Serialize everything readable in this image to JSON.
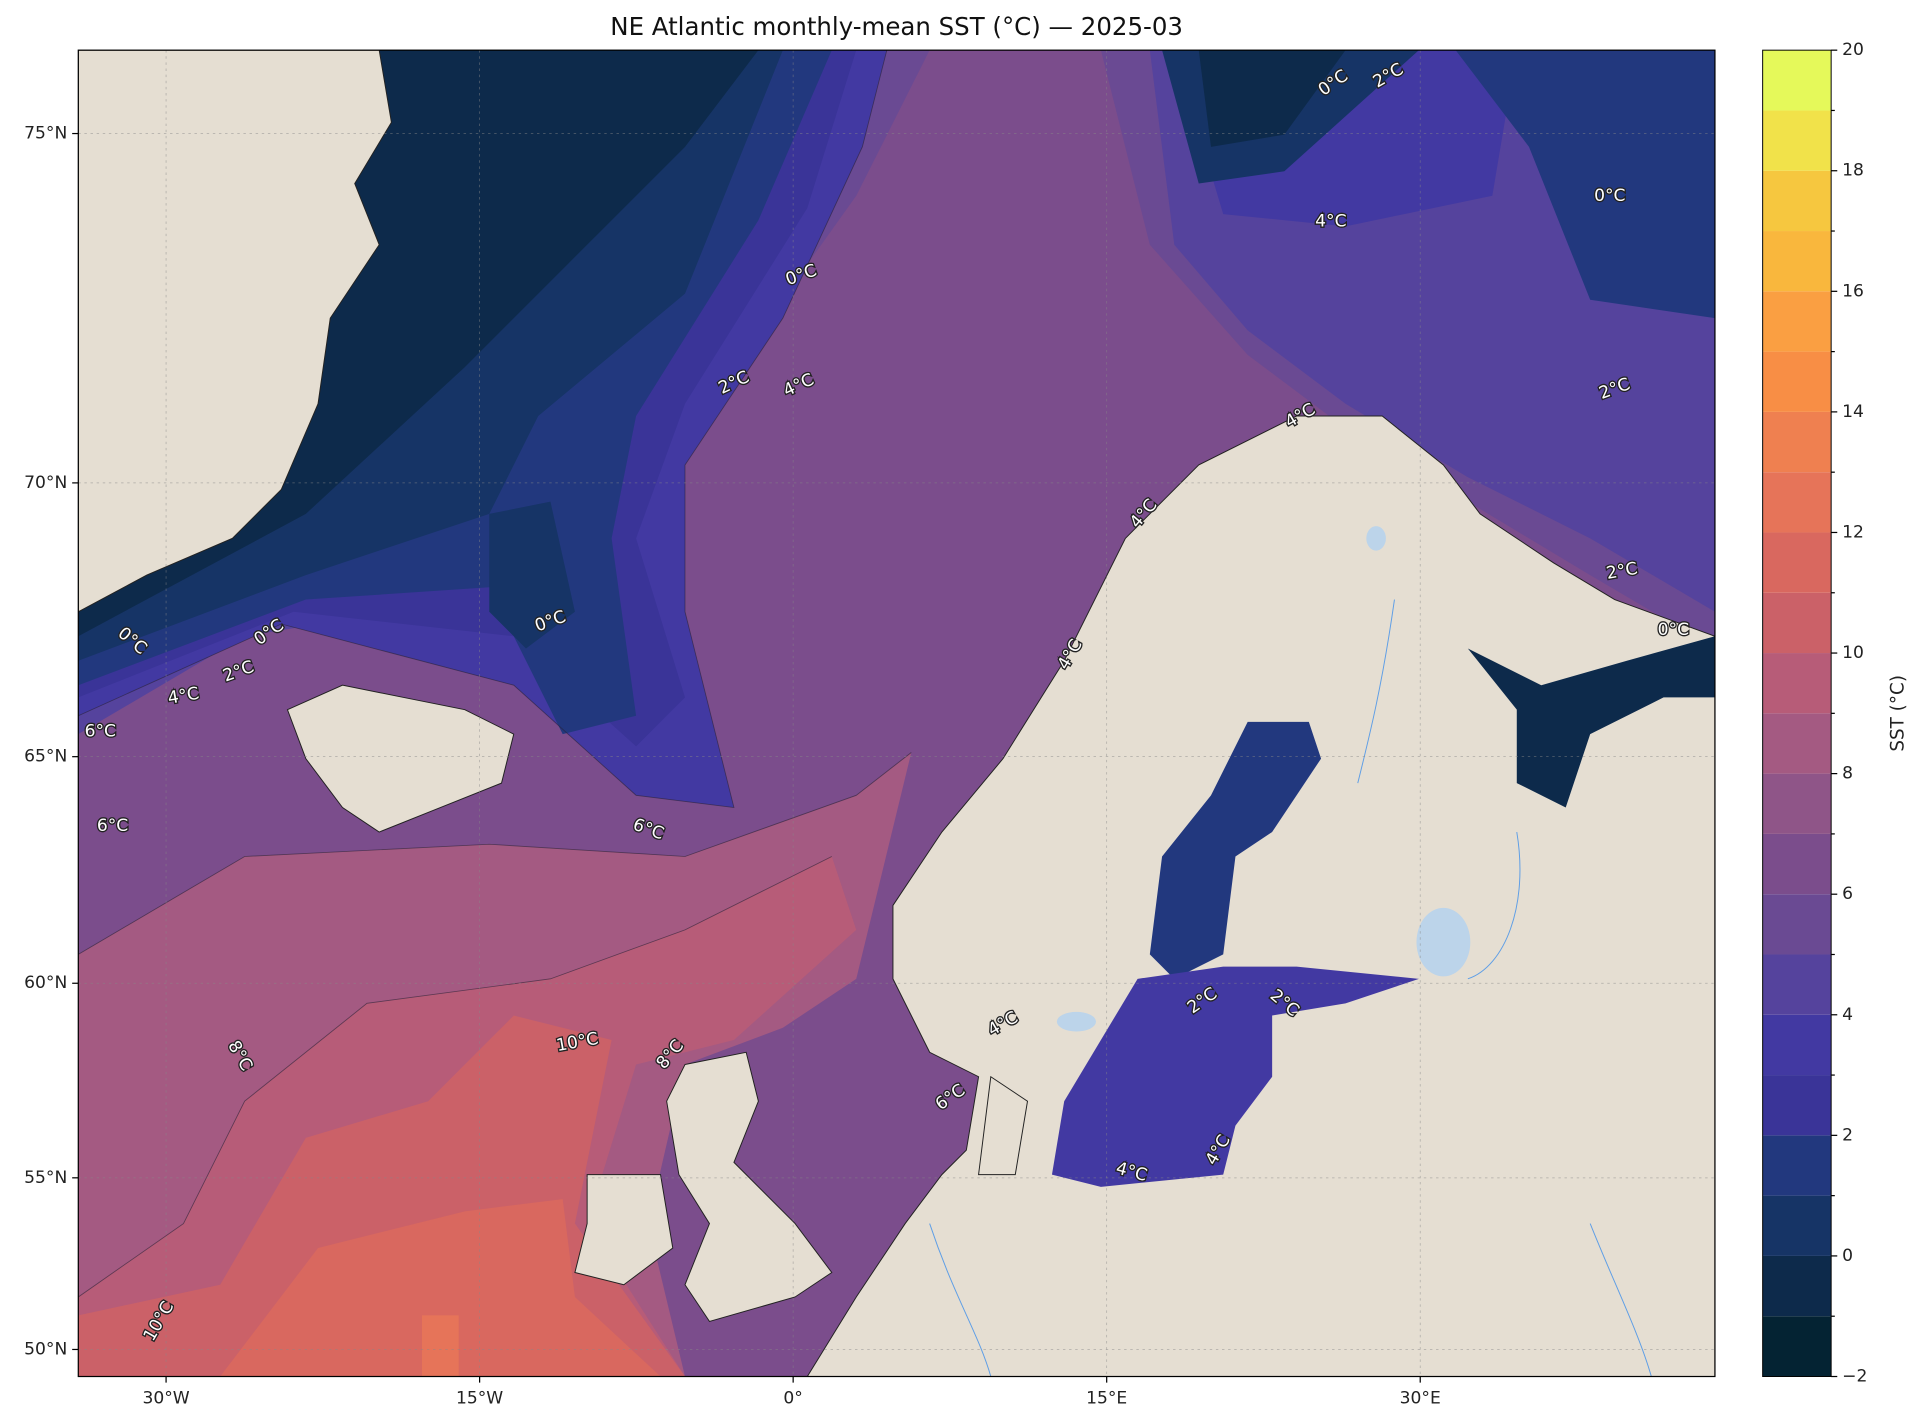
{
  "title": "NE Atlantic monthly-mean SST (°C) — 2025-03",
  "extent": {
    "lon": [
      -34.2,
      44.1
    ],
    "lat": [
      49.16,
      76.0
    ]
  },
  "lat_ticks": [
    {
      "value": 50,
      "label": "50°N"
    },
    {
      "value": 55,
      "label": "55°N"
    },
    {
      "value": 60,
      "label": "60°N"
    },
    {
      "value": 65,
      "label": "65°N"
    },
    {
      "value": 70,
      "label": "70°N"
    },
    {
      "value": 75,
      "label": "75°N"
    }
  ],
  "lon_ticks": [
    {
      "value": -30,
      "label": "30°W"
    },
    {
      "value": -15,
      "label": "15°W"
    },
    {
      "value": 0,
      "label": "0°"
    },
    {
      "value": 15,
      "label": "15°E"
    },
    {
      "value": 30,
      "label": "30°E"
    }
  ],
  "grid": true,
  "colorbar": {
    "label": "SST (°C)",
    "lim": [
      -2,
      20
    ],
    "ticks": [
      {
        "value": -2,
        "label": "−2"
      },
      0,
      2,
      4,
      6,
      8,
      10,
      12,
      14,
      16,
      18,
      20
    ],
    "levels": [
      -2,
      -1,
      0,
      1,
      2,
      3,
      4,
      5,
      6,
      7,
      8,
      9,
      10,
      11,
      12,
      13,
      14,
      15,
      16,
      17,
      18,
      19,
      20
    ],
    "colors": [
      "#042333",
      "#0d2a4b",
      "#163466",
      "#22387e",
      "#3a3498",
      "#4239a2",
      "#55439d",
      "#6a4a93",
      "#7b4d8c",
      "#8f5588",
      "#a45a82",
      "#b75c78",
      "#cb6168",
      "#d9685f",
      "#e67459",
      "#ef8050",
      "#f88e45",
      "#fa9f42",
      "#f9b73d",
      "#f6c73f",
      "#f1e24a",
      "#e5f95a"
    ]
  },
  "contour_labels": [
    "0°C",
    "2°C",
    "4°C",
    "0°C",
    "0°C",
    "2°C",
    "4°C",
    "0°C",
    "2°C",
    "4°C",
    "4°C",
    "2°C",
    "0°C",
    "0°C",
    "0°C",
    "2°C",
    "4°C",
    "6°C",
    "6°C",
    "6°C",
    "4°C",
    "8°C",
    "10°C",
    "8°C",
    "6°C",
    "4°C",
    "2°C",
    "2°C",
    "4°C",
    "4°C",
    "10°C"
  ]
}
